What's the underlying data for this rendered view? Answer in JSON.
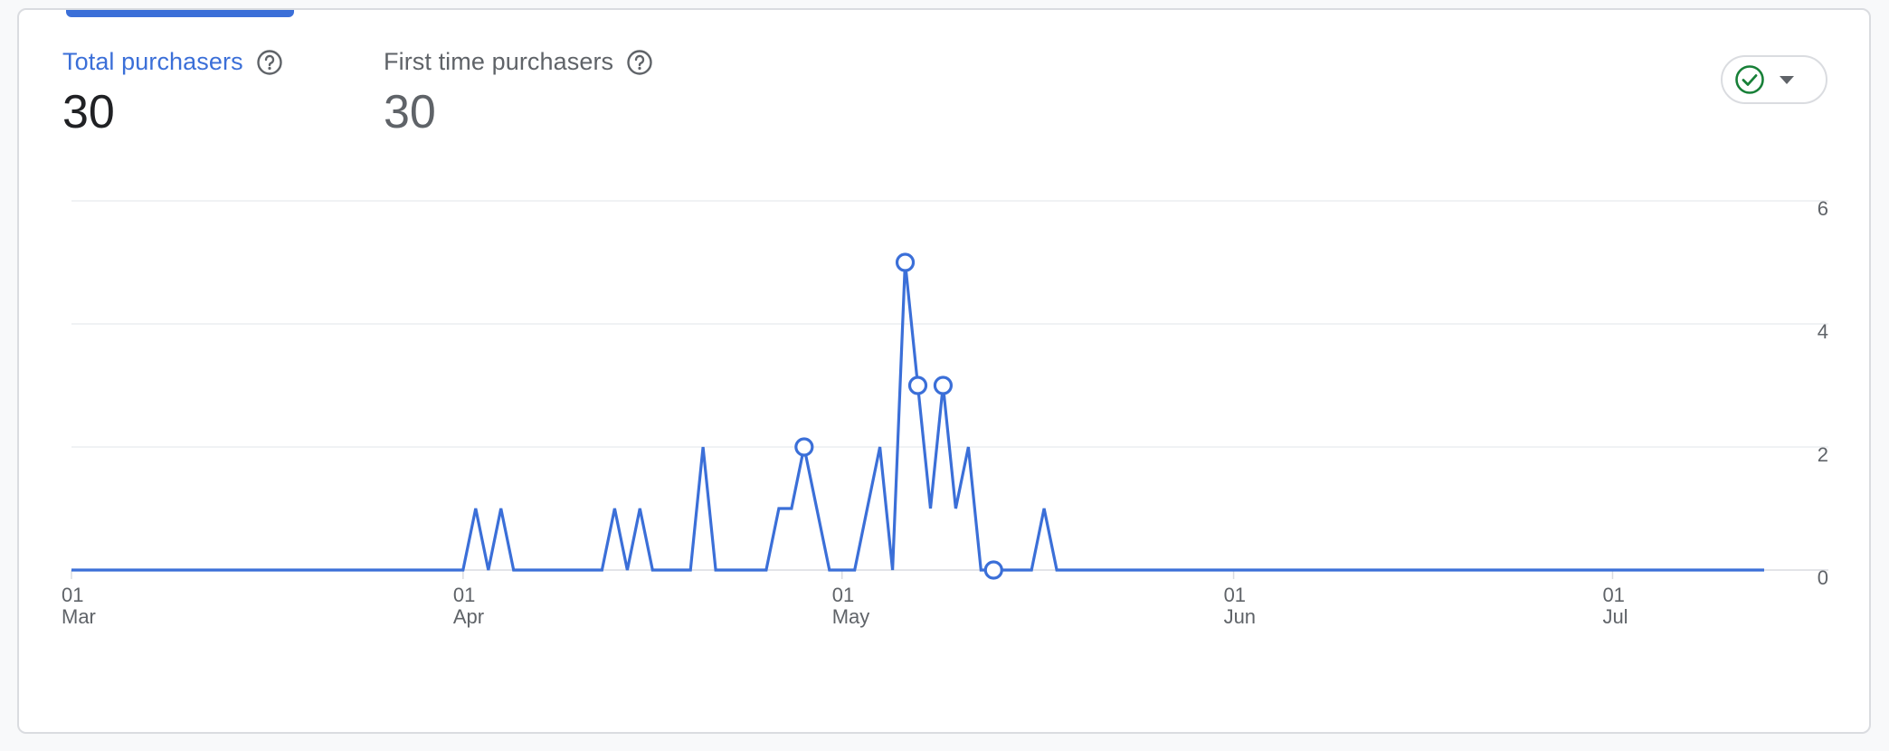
{
  "metrics": [
    {
      "label": "Total purchasers",
      "value": "30",
      "help_icon": "help-circle-icon"
    },
    {
      "label": "First time purchasers",
      "value": "30",
      "help_icon": "help-circle-icon"
    }
  ],
  "status_control": {
    "icon": "check-circle-icon",
    "dropdown_icon": "caret-down-icon",
    "check_color": "#188038"
  },
  "colors": {
    "series": "#3b6fd8",
    "active_label": "#3b6fd8",
    "grid": "#e8eaed"
  },
  "chart_data": {
    "type": "line",
    "x_start": "Mar 01",
    "x_end": "Jul 27",
    "y_ticks": [
      "6",
      "4",
      "2",
      "0"
    ],
    "ylim": [
      0,
      6
    ],
    "grid": true,
    "x_ticks": [
      {
        "day": 0,
        "line1": "01",
        "line2": "Mar"
      },
      {
        "day": 31,
        "line1": "01",
        "line2": "Apr"
      },
      {
        "day": 61,
        "line1": "01",
        "line2": "May"
      },
      {
        "day": 92,
        "line1": "01",
        "line2": "Jun"
      },
      {
        "day": 122,
        "line1": "01",
        "line2": "Jul"
      }
    ],
    "series": [
      {
        "values": [
          0,
          0,
          0,
          0,
          0,
          0,
          0,
          0,
          0,
          0,
          0,
          0,
          0,
          0,
          0,
          0,
          0,
          0,
          0,
          0,
          0,
          0,
          0,
          0,
          0,
          0,
          0,
          0,
          0,
          0,
          0,
          0,
          1,
          0,
          1,
          0,
          0,
          0,
          0,
          0,
          0,
          0,
          0,
          1,
          0,
          1,
          0,
          0,
          0,
          0,
          2,
          0,
          0,
          0,
          0,
          0,
          1,
          1,
          2,
          1,
          0,
          0,
          0,
          1,
          2,
          0,
          5,
          3,
          1,
          3,
          1,
          2,
          0,
          0,
          0,
          0,
          0,
          1,
          0,
          0,
          0,
          0,
          0,
          0,
          0,
          0,
          0,
          0,
          0,
          0,
          0,
          0,
          0,
          0,
          0,
          0,
          0,
          0,
          0,
          0,
          0,
          0,
          0,
          0,
          0,
          0,
          0,
          0,
          0,
          0,
          0,
          0,
          0,
          0,
          0,
          0,
          0,
          0,
          0,
          0,
          0,
          0,
          0,
          0,
          0,
          0,
          0,
          0,
          0,
          0,
          0,
          0,
          0,
          0,
          0
        ],
        "marked_days": [
          58,
          66,
          67,
          69,
          73
        ]
      }
    ]
  }
}
